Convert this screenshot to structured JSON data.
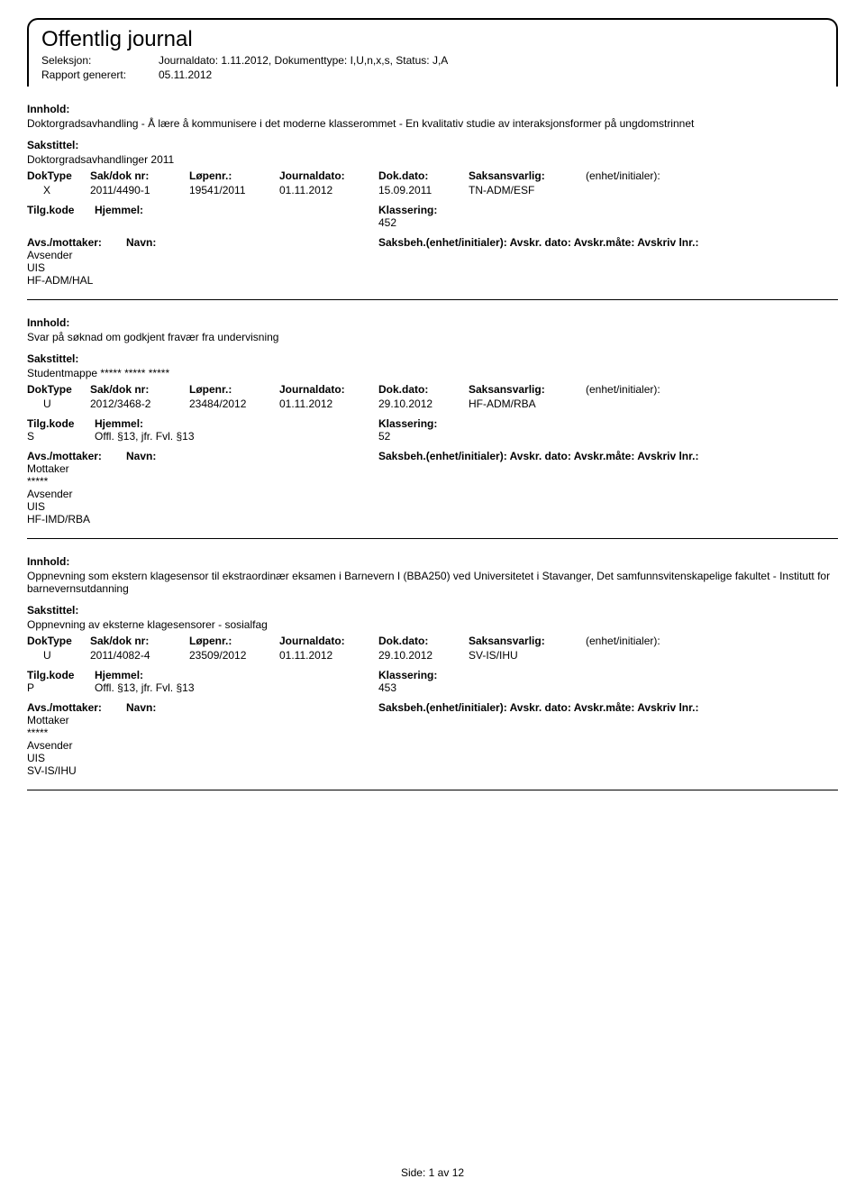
{
  "header": {
    "title": "Offentlig journal",
    "seleksjon_label": "Seleksjon:",
    "seleksjon_value": "Journaldato: 1.11.2012, Dokumenttype: I,U,n,x,s, Status: J,A",
    "rapport_label": "Rapport generert:",
    "rapport_value": "05.11.2012"
  },
  "labels": {
    "innhold": "Innhold:",
    "sakstittel": "Sakstittel:",
    "doktype": "DokType",
    "sakdok": "Sak/dok nr:",
    "lopenr": "Løpenr.:",
    "journaldato": "Journaldato:",
    "dokdato": "Dok.dato:",
    "saksansvarlig": "Saksansvarlig:",
    "enhet": "(enhet/initialer):",
    "tilgkode": "Tilg.kode",
    "hjemmel": "Hjemmel:",
    "klassering": "Klassering:",
    "avsmottaker": "Avs./mottaker:",
    "navn": "Navn:",
    "saksbeh": "Saksbeh.(enhet/initialer): Avskr. dato: Avskr.måte: Avskriv lnr.:",
    "mottaker": "Mottaker",
    "avsender": "Avsender"
  },
  "entries": [
    {
      "innhold": "Doktorgradsavhandling - Å lære å kommunisere i det moderne klasserommet - En kvalitativ studie av interaksjonsformer på ungdomstrinnet",
      "sakstittel": "Doktorgradsavhandlinger 2011",
      "doktype": "X",
      "sakdok": "2011/4490-1",
      "lopenr": "19541/2011",
      "journaldato": "01.11.2012",
      "dokdato": "15.09.2011",
      "saksansvarlig": "TN-ADM/ESF",
      "enhet": "",
      "tilgkode": "",
      "hjemmel": "",
      "klassering": "452",
      "parties": [
        {
          "role": "Avsender",
          "navn": "UIS",
          "saksbeh": "HF-ADM/HAL"
        }
      ]
    },
    {
      "innhold": "Svar på søknad om godkjent fravær fra undervisning",
      "sakstittel": "Studentmappe ***** ***** *****",
      "doktype": "U",
      "sakdok": "2012/3468-2",
      "lopenr": "23484/2012",
      "journaldato": "01.11.2012",
      "dokdato": "29.10.2012",
      "saksansvarlig": "HF-ADM/RBA",
      "enhet": "",
      "tilgkode": "S",
      "hjemmel": "Offl. §13, jfr. Fvl. §13",
      "klassering": "52",
      "parties": [
        {
          "role": "Mottaker",
          "navn": "*****",
          "saksbeh": ""
        },
        {
          "role": "Avsender",
          "navn": "UIS",
          "saksbeh": "HF-IMD/RBA"
        }
      ]
    },
    {
      "innhold": "Oppnevning som ekstern klagesensor til ekstraordinær eksamen i Barnevern I (BBA250) ved Universitetet i Stavanger, Det samfunnsvitenskapelige fakultet - Institutt for barnevernsutdanning",
      "sakstittel": "Oppnevning av eksterne klagesensorer - sosialfag",
      "doktype": "U",
      "sakdok": "2011/4082-4",
      "lopenr": "23509/2012",
      "journaldato": "01.11.2012",
      "dokdato": "29.10.2012",
      "saksansvarlig": "SV-IS/IHU",
      "enhet": "",
      "tilgkode": "P",
      "hjemmel": "Offl. §13, jfr. Fvl. §13",
      "klassering": "453",
      "parties": [
        {
          "role": "Mottaker",
          "navn": "*****",
          "saksbeh": ""
        },
        {
          "role": "Avsender",
          "navn": "UIS",
          "saksbeh": "SV-IS/IHU"
        }
      ]
    }
  ],
  "footer": {
    "side_label": "Side:",
    "page_current": "1",
    "page_sep": "av",
    "page_total": "12"
  }
}
